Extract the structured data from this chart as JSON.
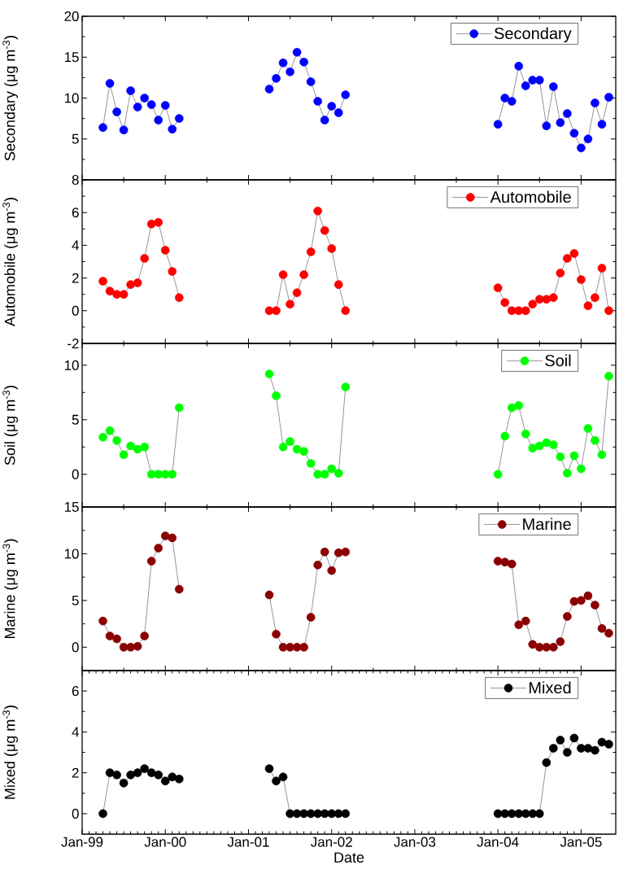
{
  "chart_data": [
    {
      "type": "line",
      "ylabel": "Secondary (μg m$^{-3}$)",
      "xlim": [
        "1999-01",
        "2005-06"
      ],
      "ylim": [
        0,
        20
      ],
      "yticks": [
        {
          "value": 0,
          "label": null
        },
        5,
        10,
        15,
        20
      ],
      "tick_labels": "y",
      "legend": "top right",
      "marker": "circle",
      "xticks": [
        {
          "value": "1999-01",
          "label": null
        },
        {
          "value": "2000-01",
          "label": null
        },
        {
          "value": "2001-01",
          "label": null
        },
        {
          "value": "2002-01",
          "label": null
        },
        {
          "value": "2003-01",
          "label": null
        },
        {
          "value": "2004-01",
          "label": null
        },
        {
          "value": "2005-01",
          "label": null
        }
      ],
      "x": [
        "1999-04",
        "1999-05",
        "1999-06",
        "1999-07",
        "1999-08",
        "1999-09",
        "1999-10",
        "1999-11",
        "1999-12",
        "2000-01",
        "2000-02",
        "2000-03",
        "2000-04",
        "2001-04",
        "2001-05",
        "2001-06",
        "2001-07",
        "2001-08",
        "2001-09",
        "2001-10",
        "2001-11",
        "2001-12",
        "2002-01",
        "2002-02",
        "2002-03",
        "2002-04",
        "2004-01",
        "2004-02",
        "2004-03",
        "2004-04",
        "2004-05",
        "2004-06",
        "2004-07",
        "2004-08",
        "2004-09",
        "2004-10",
        "2004-11",
        "2004-12",
        "2005-01",
        "2005-02",
        "2005-03",
        "2005-04",
        "2005-05"
      ],
      "series": [
        {
          "name": "Secondary",
          "color": "#0000ff",
          "values": [
            6.4,
            11.8,
            8.3,
            6.1,
            10.9,
            8.9,
            10.0,
            9.2,
            7.3,
            9.1,
            6.2,
            7.5,
            null,
            11.1,
            12.4,
            14.3,
            13.2,
            15.6,
            14.4,
            12.0,
            9.6,
            7.3,
            9.0,
            8.2,
            10.4,
            null,
            6.8,
            10.0,
            9.6,
            13.9,
            11.5,
            12.2,
            12.2,
            6.6,
            11.4,
            7.0,
            8.1,
            5.7,
            3.9,
            5.0,
            9.4,
            6.8,
            10.1
          ]
        }
      ]
    },
    {
      "type": "line",
      "ylabel": "Automobile (μg m$^{-3}$)",
      "xlim": [
        "1999-01",
        "2005-06"
      ],
      "ylim": [
        -2,
        8
      ],
      "yticks": [
        -2,
        0,
        2,
        4,
        6,
        8
      ],
      "tick_labels": "y",
      "legend": "top right",
      "marker": "circle",
      "xticks": [
        {
          "value": "1999-01",
          "label": null
        },
        {
          "value": "2000-01",
          "label": null
        },
        {
          "value": "2001-01",
          "label": null
        },
        {
          "value": "2002-01",
          "label": null
        },
        {
          "value": "2003-01",
          "label": null
        },
        {
          "value": "2004-01",
          "label": null
        },
        {
          "value": "2005-01",
          "label": null
        }
      ],
      "x": [
        "1999-04",
        "1999-05",
        "1999-06",
        "1999-07",
        "1999-08",
        "1999-09",
        "1999-10",
        "1999-11",
        "1999-12",
        "2000-01",
        "2000-02",
        "2000-03",
        "2000-04",
        "2001-04",
        "2001-05",
        "2001-06",
        "2001-07",
        "2001-08",
        "2001-09",
        "2001-10",
        "2001-11",
        "2001-12",
        "2002-01",
        "2002-02",
        "2002-03",
        "2002-04",
        "2004-01",
        "2004-02",
        "2004-03",
        "2004-04",
        "2004-05",
        "2004-06",
        "2004-07",
        "2004-08",
        "2004-09",
        "2004-10",
        "2004-11",
        "2004-12",
        "2005-01",
        "2005-02",
        "2005-03",
        "2005-04",
        "2005-05"
      ],
      "series": [
        {
          "name": "Automobile",
          "color": "#ff0000",
          "values": [
            1.8,
            1.2,
            1.0,
            1.0,
            1.6,
            1.7,
            3.2,
            5.3,
            5.4,
            3.7,
            2.4,
            0.8,
            null,
            0.0,
            0.0,
            2.2,
            0.4,
            1.1,
            2.2,
            3.6,
            6.1,
            4.9,
            3.8,
            1.6,
            0.0,
            null,
            1.4,
            0.5,
            0.0,
            0.0,
            0.0,
            0.4,
            0.7,
            0.7,
            0.8,
            2.3,
            3.2,
            3.5,
            1.9,
            0.3,
            0.8,
            2.6,
            0.0
          ]
        }
      ]
    },
    {
      "type": "line",
      "ylabel": "Soil (μg m$^{-3}$)",
      "xlim": [
        "1999-01",
        "2005-06"
      ],
      "ylim": [
        -3,
        12
      ],
      "yticks": [
        0,
        5,
        10
      ],
      "tick_labels": "y",
      "legend": "top right",
      "marker": "circle",
      "xticks": [
        {
          "value": "1999-01",
          "label": null
        },
        {
          "value": "2000-01",
          "label": null
        },
        {
          "value": "2001-01",
          "label": null
        },
        {
          "value": "2002-01",
          "label": null
        },
        {
          "value": "2003-01",
          "label": null
        },
        {
          "value": "2004-01",
          "label": null
        },
        {
          "value": "2005-01",
          "label": null
        }
      ],
      "x": [
        "1999-04",
        "1999-05",
        "1999-06",
        "1999-07",
        "1999-08",
        "1999-09",
        "1999-10",
        "1999-11",
        "1999-12",
        "2000-01",
        "2000-02",
        "2000-03",
        "2000-04",
        "2001-04",
        "2001-05",
        "2001-06",
        "2001-07",
        "2001-08",
        "2001-09",
        "2001-10",
        "2001-11",
        "2001-12",
        "2002-01",
        "2002-02",
        "2002-03",
        "2002-04",
        "2004-01",
        "2004-02",
        "2004-03",
        "2004-04",
        "2004-05",
        "2004-06",
        "2004-07",
        "2004-08",
        "2004-09",
        "2004-10",
        "2004-11",
        "2004-12",
        "2005-01",
        "2005-02",
        "2005-03",
        "2005-04",
        "2005-05"
      ],
      "series": [
        {
          "name": "Soil",
          "color": "#00ff00",
          "values": [
            3.4,
            4.0,
            3.1,
            1.8,
            2.6,
            2.3,
            2.5,
            0.0,
            0.0,
            0.0,
            0.0,
            6.1,
            null,
            9.2,
            7.2,
            2.5,
            3.0,
            2.3,
            2.1,
            1.0,
            0.0,
            0.0,
            0.5,
            0.1,
            8.0,
            null,
            0.0,
            3.5,
            6.1,
            6.3,
            3.7,
            2.4,
            2.6,
            2.9,
            2.7,
            1.6,
            0.1,
            1.7,
            0.5,
            4.2,
            3.1,
            1.8,
            9.0
          ]
        }
      ]
    },
    {
      "type": "line",
      "ylabel": "Marine (μg m$^{-3}$)",
      "xlim": [
        "1999-01",
        "2005-06"
      ],
      "ylim": [
        -2.5,
        15
      ],
      "yticks": [
        0,
        5,
        10,
        15
      ],
      "tick_labels": "y",
      "legend": "top right",
      "marker": "circle",
      "xticks": [
        {
          "value": "1999-01",
          "label": null
        },
        {
          "value": "2000-01",
          "label": null
        },
        {
          "value": "2001-01",
          "label": null
        },
        {
          "value": "2002-01",
          "label": null
        },
        {
          "value": "2003-01",
          "label": null
        },
        {
          "value": "2004-01",
          "label": null
        },
        {
          "value": "2005-01",
          "label": null
        }
      ],
      "x": [
        "1999-04",
        "1999-05",
        "1999-06",
        "1999-07",
        "1999-08",
        "1999-09",
        "1999-10",
        "1999-11",
        "1999-12",
        "2000-01",
        "2000-02",
        "2000-03",
        "2000-04",
        "2001-04",
        "2001-05",
        "2001-06",
        "2001-07",
        "2001-08",
        "2001-09",
        "2001-10",
        "2001-11",
        "2001-12",
        "2002-01",
        "2002-02",
        "2002-03",
        "2002-04",
        "2004-01",
        "2004-02",
        "2004-03",
        "2004-04",
        "2004-05",
        "2004-06",
        "2004-07",
        "2004-08",
        "2004-09",
        "2004-10",
        "2004-11",
        "2004-12",
        "2005-01",
        "2005-02",
        "2005-03",
        "2005-04",
        "2005-05"
      ],
      "series": [
        {
          "name": "Marine",
          "color": "#8b0000",
          "values": [
            2.8,
            1.2,
            0.9,
            0.0,
            0.0,
            0.1,
            1.2,
            9.2,
            10.6,
            11.9,
            11.7,
            6.2,
            null,
            5.6,
            1.4,
            0.0,
            0.0,
            0.0,
            0.0,
            3.2,
            8.8,
            10.2,
            8.2,
            10.1,
            10.2,
            null,
            9.2,
            9.1,
            8.9,
            2.4,
            2.8,
            0.3,
            0.0,
            0.0,
            0.0,
            0.6,
            3.3,
            4.9,
            5.0,
            5.5,
            4.5,
            2.0,
            1.5
          ]
        }
      ]
    },
    {
      "type": "line",
      "ylabel": "Mixed (μg m$^{-3}$)",
      "xlabel": "Date",
      "xlim": [
        "1999-01",
        "2005-06"
      ],
      "ylim": [
        -1,
        7
      ],
      "yticks": [
        0,
        2,
        4,
        6
      ],
      "legend": "top right",
      "marker": "circle",
      "xticks": [
        {
          "value": "1999-01",
          "label": "Jan-99"
        },
        {
          "value": "2000-01",
          "label": "Jan-00"
        },
        {
          "value": "2001-01",
          "label": "Jan-01"
        },
        {
          "value": "2002-01",
          "label": "Jan-02"
        },
        {
          "value": "2003-01",
          "label": "Jan-03"
        },
        {
          "value": "2004-01",
          "label": "Jan-04"
        },
        {
          "value": "2005-01",
          "label": "Jan-05"
        }
      ],
      "x": [
        "1999-04",
        "1999-05",
        "1999-06",
        "1999-07",
        "1999-08",
        "1999-09",
        "1999-10",
        "1999-11",
        "1999-12",
        "2000-01",
        "2000-02",
        "2000-03",
        "2000-04",
        "2001-04",
        "2001-05",
        "2001-06",
        "2001-07",
        "2001-08",
        "2001-09",
        "2001-10",
        "2001-11",
        "2001-12",
        "2002-01",
        "2002-02",
        "2002-03",
        "2002-04",
        "2004-01",
        "2004-02",
        "2004-03",
        "2004-04",
        "2004-05",
        "2004-06",
        "2004-07",
        "2004-08",
        "2004-09",
        "2004-10",
        "2004-11",
        "2004-12",
        "2005-01",
        "2005-02",
        "2005-03",
        "2005-04",
        "2005-05"
      ],
      "series": [
        {
          "name": "Mixed",
          "color": "#000000",
          "values": [
            0.0,
            2.0,
            1.9,
            1.5,
            1.9,
            2.0,
            2.2,
            2.0,
            1.9,
            1.6,
            1.8,
            1.7,
            null,
            2.2,
            1.6,
            1.8,
            0.0,
            0.0,
            0.0,
            0.0,
            0.0,
            0.0,
            0.0,
            0.0,
            0.0,
            null,
            0.0,
            0.0,
            0.0,
            0.0,
            0.0,
            0.0,
            0.0,
            2.5,
            3.2,
            3.6,
            3.0,
            3.7,
            3.2,
            3.2,
            3.1,
            3.5,
            3.4
          ]
        }
      ]
    }
  ]
}
